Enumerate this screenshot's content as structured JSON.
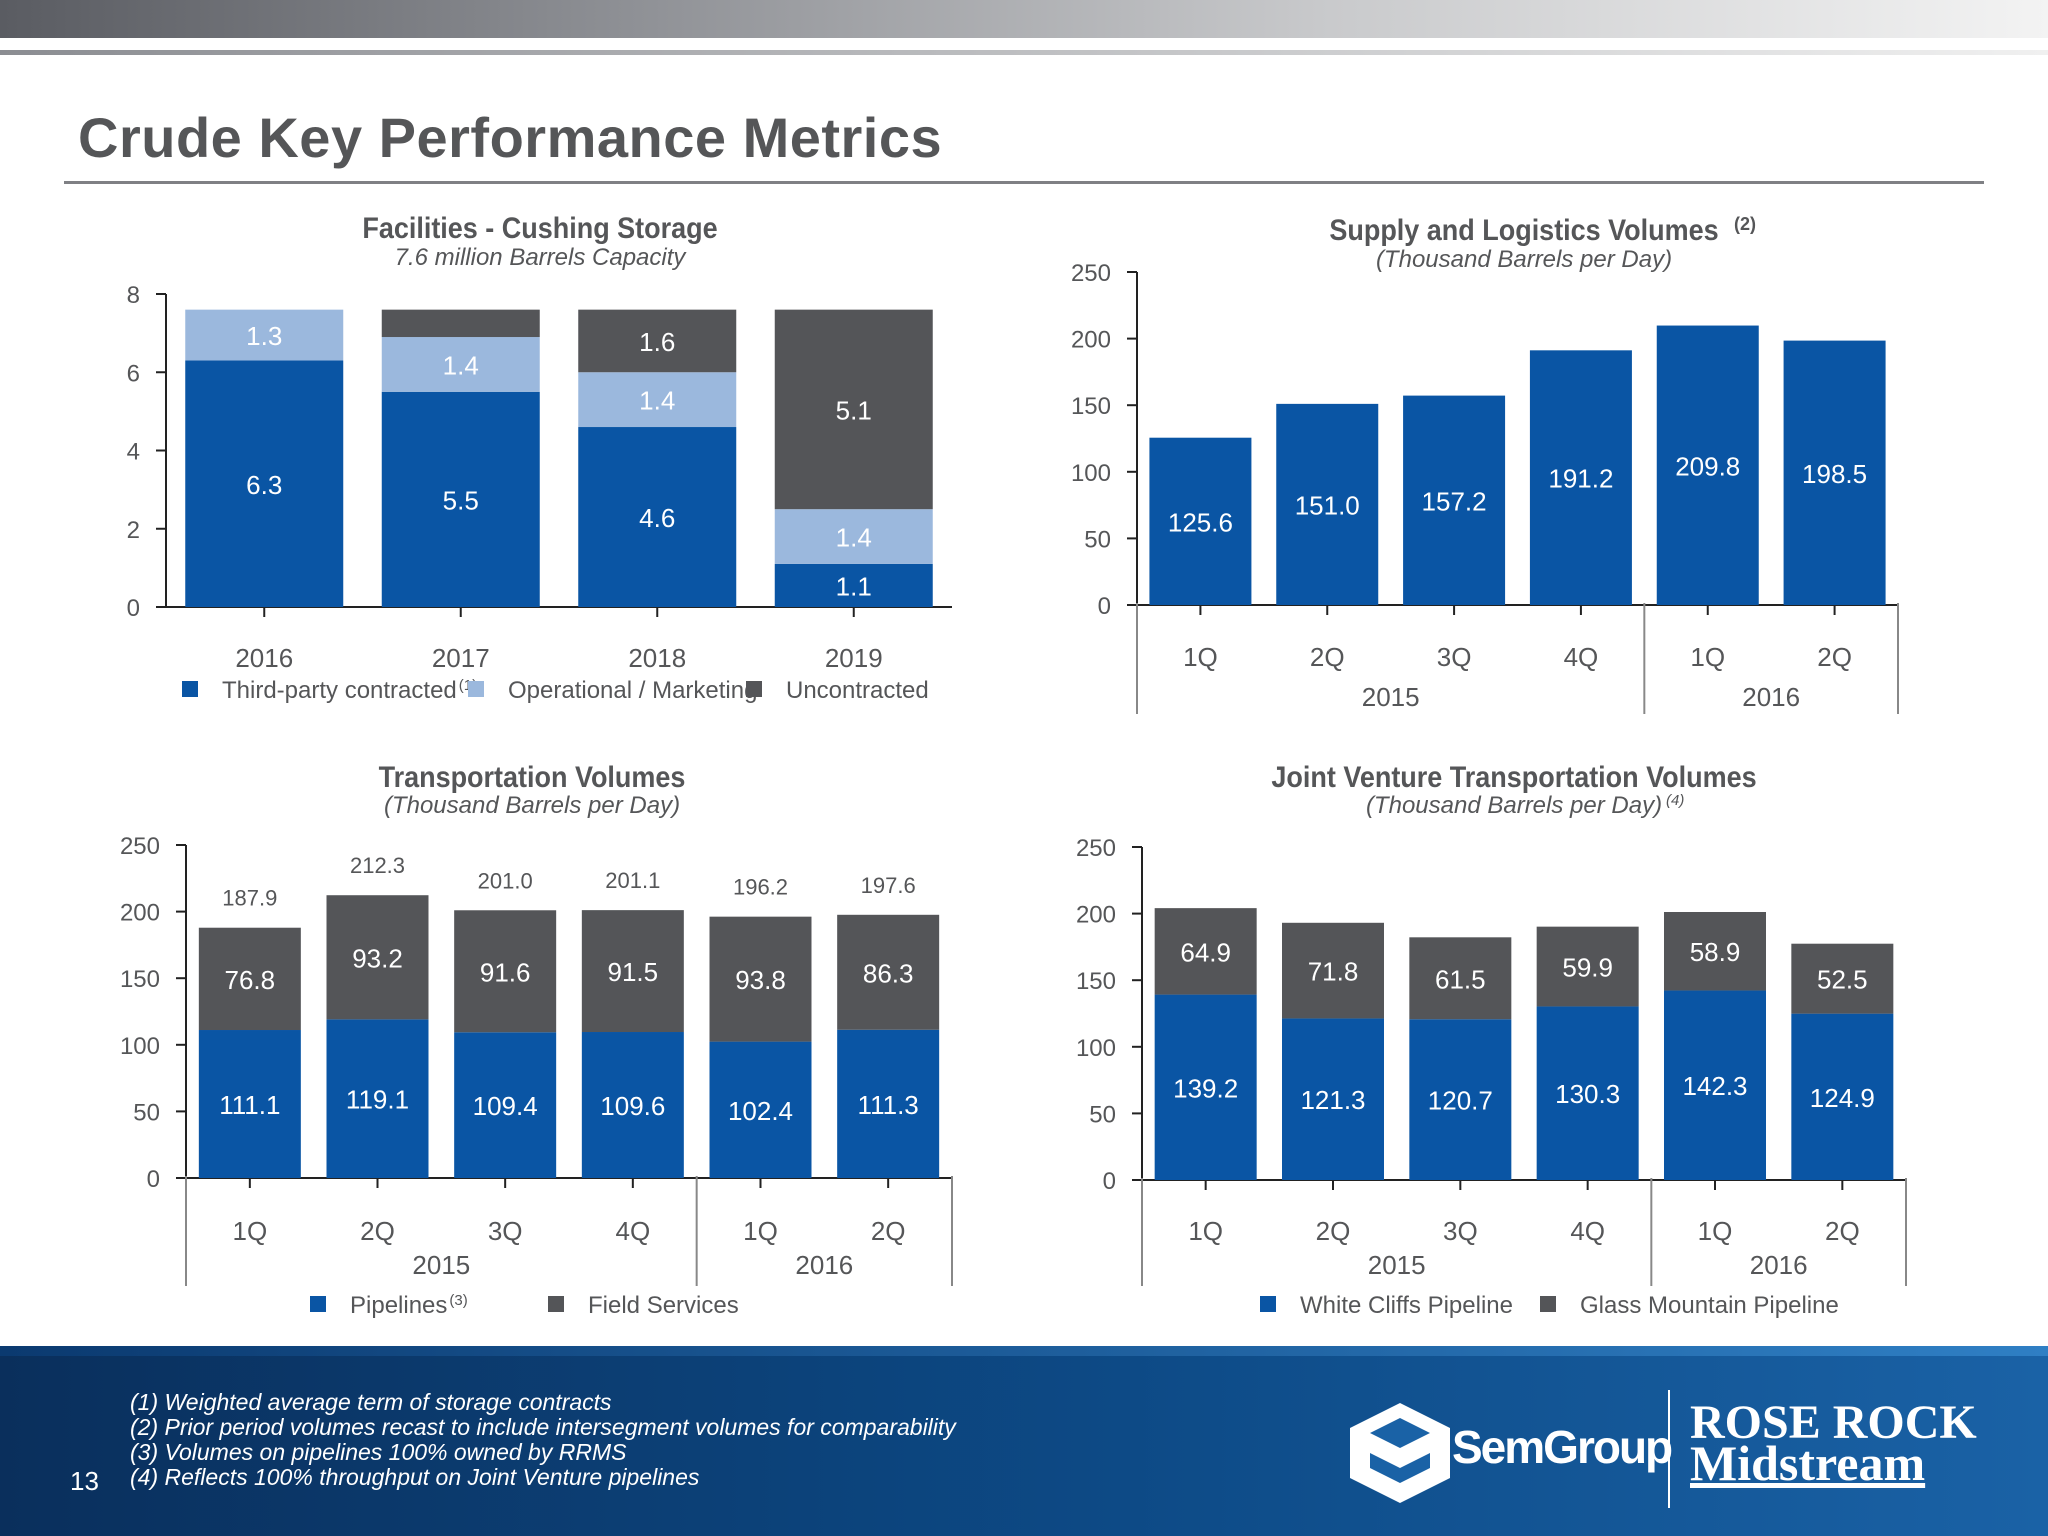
{
  "page": {
    "title": "Crude Key Performance Metrics",
    "page_number": "13",
    "footnotes": [
      "(1) Weighted average term of storage contracts",
      "(2) Prior period volumes recast to include intersegment volumes for comparability",
      "(3) Volumes on pipelines 100% owned by RRMS",
      "(4) Reflects 100% throughput on Joint Venture pipelines"
    ],
    "logos": {
      "semgroup": "SemGroup",
      "rose_rock_1": "ROSE ROCK",
      "rose_rock_2": "Midstream"
    }
  },
  "colors": {
    "blue": "#0a55a4",
    "light_blue": "#9bb8dd",
    "gray": "#545558",
    "axis": "#222222",
    "text": "#555658"
  },
  "chart_data": [
    {
      "id": "cushing",
      "type": "bar",
      "stacked": true,
      "title": "Facilities - Cushing Storage",
      "subtitle": "7.6 million Barrels Capacity",
      "categories": [
        "2016",
        "2017",
        "2018",
        "2019"
      ],
      "ylim": [
        0,
        8
      ],
      "yticks": [
        0,
        2,
        4,
        6,
        8
      ],
      "series": [
        {
          "name": "Third-party contracted",
          "sup": "(1)",
          "color": "#0a55a4",
          "labels": [
            "6.3",
            "5.5",
            "4.6",
            "1.1"
          ],
          "values": [
            6.3,
            5.5,
            4.6,
            1.1
          ]
        },
        {
          "name": "Operational / Marketing",
          "sup": "",
          "color": "#9bb8dd",
          "labels": [
            "1.3",
            "1.4",
            "1.4",
            "1.4"
          ],
          "values": [
            1.3,
            1.4,
            1.4,
            1.4
          ]
        },
        {
          "name": "Uncontracted",
          "sup": "",
          "color": "#545558",
          "labels": [
            "",
            "",
            "1.6",
            "5.1"
          ],
          "values": [
            0.0,
            0.7,
            1.6,
            5.1
          ]
        }
      ],
      "legend": "bottom"
    },
    {
      "id": "supply",
      "type": "bar",
      "stacked": false,
      "title": "Supply and Logistics Volumes",
      "title_sup": "(2)",
      "subtitle": "(Thousand Barrels per Day)",
      "categories": [
        "1Q",
        "2Q",
        "3Q",
        "4Q",
        "1Q",
        "2Q"
      ],
      "groups": [
        {
          "label": "2015",
          "count": 4
        },
        {
          "label": "2016",
          "count": 2
        }
      ],
      "ylim": [
        0,
        250
      ],
      "yticks": [
        0,
        50,
        100,
        150,
        200,
        250
      ],
      "series": [
        {
          "name": "Volumes",
          "color": "#0a55a4",
          "labels": [
            "125.6",
            "151.0",
            "157.2",
            "191.2",
            "209.8",
            "198.5"
          ],
          "values": [
            125.6,
            151.0,
            157.2,
            191.2,
            209.8,
            198.5
          ]
        }
      ]
    },
    {
      "id": "transport",
      "type": "bar",
      "stacked": true,
      "title": "Transportation Volumes",
      "subtitle": "(Thousand Barrels per Day)",
      "categories": [
        "1Q",
        "2Q",
        "3Q",
        "4Q",
        "1Q",
        "2Q"
      ],
      "groups": [
        {
          "label": "2015",
          "count": 4
        },
        {
          "label": "2016",
          "count": 2
        }
      ],
      "ylim": [
        0,
        250
      ],
      "yticks": [
        0,
        50,
        100,
        150,
        200,
        250
      ],
      "totals": [
        "187.9",
        "212.3",
        "201.0",
        "201.1",
        "196.2",
        "197.6"
      ],
      "series": [
        {
          "name": "Pipelines",
          "sup": "(3)",
          "color": "#0a55a4",
          "labels": [
            "111.1",
            "119.1",
            "109.4",
            "109.6",
            "102.4",
            "111.3"
          ],
          "values": [
            111.1,
            119.1,
            109.4,
            109.6,
            102.4,
            111.3
          ]
        },
        {
          "name": "Field Services",
          "sup": "",
          "color": "#545558",
          "labels": [
            "76.8",
            "93.2",
            "91.6",
            "91.5",
            "93.8",
            "86.3"
          ],
          "values": [
            76.8,
            93.2,
            91.6,
            91.5,
            93.8,
            86.3
          ]
        }
      ],
      "legend": "bottom"
    },
    {
      "id": "jv",
      "type": "bar",
      "stacked": true,
      "title": "Joint Venture Transportation Volumes",
      "subtitle": "(Thousand Barrels per Day)",
      "subtitle_sup": "(4)",
      "categories": [
        "1Q",
        "2Q",
        "3Q",
        "4Q",
        "1Q",
        "2Q"
      ],
      "groups": [
        {
          "label": "2015",
          "count": 4
        },
        {
          "label": "2016",
          "count": 2
        }
      ],
      "ylim": [
        0,
        250
      ],
      "yticks": [
        0,
        50,
        100,
        150,
        200,
        250
      ],
      "series": [
        {
          "name": "White Cliffs Pipeline",
          "sup": "",
          "color": "#0a55a4",
          "labels": [
            "139.2",
            "121.3",
            "120.7",
            "130.3",
            "142.3",
            "124.9"
          ],
          "values": [
            139.2,
            121.3,
            120.7,
            130.3,
            142.3,
            124.9
          ]
        },
        {
          "name": "Glass Mountain Pipeline",
          "sup": "",
          "color": "#545558",
          "labels": [
            "64.9",
            "71.8",
            "61.5",
            "59.9",
            "58.9",
            "52.5"
          ],
          "values": [
            64.9,
            71.8,
            61.5,
            59.9,
            58.9,
            52.5
          ]
        }
      ],
      "legend": "bottom"
    }
  ]
}
